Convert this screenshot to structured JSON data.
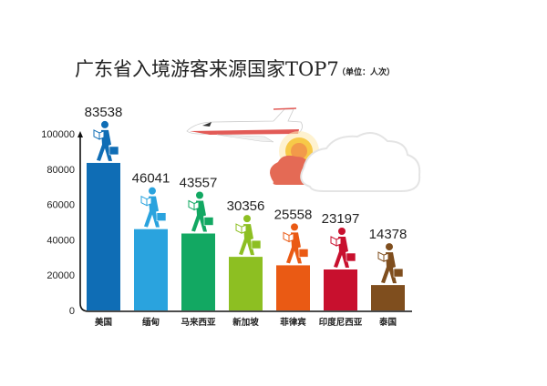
{
  "chart_data": {
    "type": "bar",
    "title": "广东省入境游客来源国家TOP7",
    "subtitle": "（单位：人次）",
    "categories": [
      "美国",
      "缅甸",
      "马来西亚",
      "新加坡",
      "菲律宾",
      "印度尼西亚",
      "泰国"
    ],
    "values": [
      83538,
      46041,
      43557,
      30356,
      25558,
      23197,
      14378
    ],
    "value_labels": [
      "83538",
      "46041",
      "43557",
      "30356",
      "25558",
      "23197",
      "14378"
    ],
    "colors": [
      "#0f6db5",
      "#2aa3de",
      "#12a862",
      "#8dbf22",
      "#ea5a14",
      "#c8102e",
      "#7f4e1e"
    ],
    "ylim": [
      0,
      100000
    ],
    "yticks": [
      0,
      20000,
      40000,
      60000,
      80000,
      100000
    ],
    "ytick_labels": [
      "0",
      "20000",
      "40000",
      "60000",
      "80000",
      "100000"
    ],
    "grid": false,
    "legend": "none",
    "decorations": [
      "airplane",
      "sun",
      "clouds",
      "walking-traveler-icon"
    ]
  }
}
